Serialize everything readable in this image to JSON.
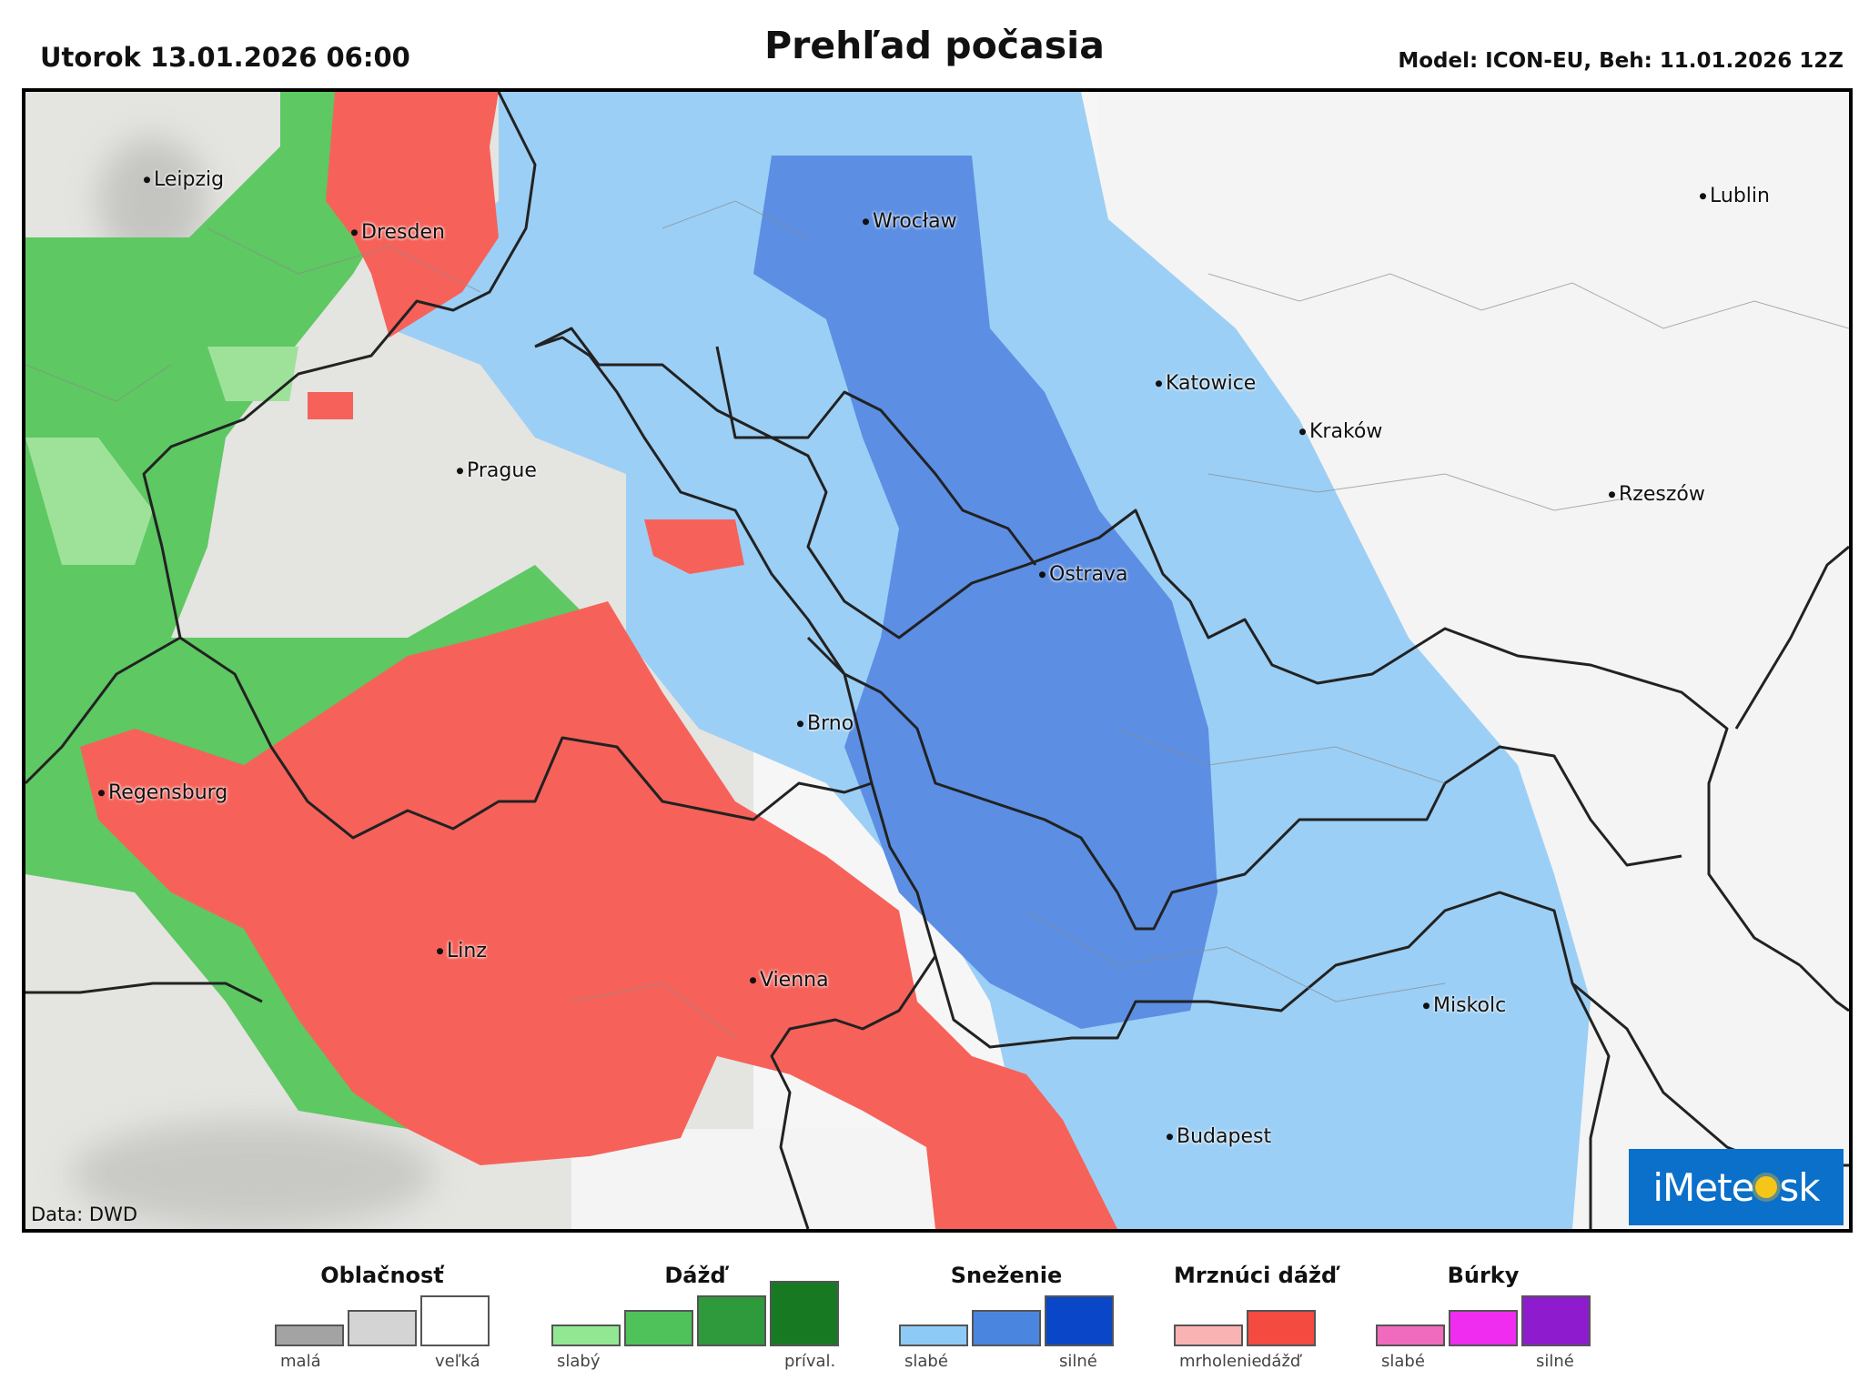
{
  "header": {
    "date": "Utorok 13.01.2026 06:00",
    "title": "Prehľad počasia",
    "model": "Model: ICON-EU, Beh: 11.01.2026 12Z"
  },
  "map": {
    "credit": "Data: DWD",
    "logo": {
      "left": "iMete",
      "right": "sk"
    },
    "colors": {
      "cloud_bg": "#e6e6e3",
      "rain": "#5ec862",
      "rain_light": "#9ee29a",
      "snow_light": "#9ccff5",
      "snow": "#5c8fe3",
      "freezing": "#f6625a",
      "border": "#222222"
    },
    "cities": [
      {
        "name": "Leipzig"
      },
      {
        "name": "Dresden"
      },
      {
        "name": "Wrocław"
      },
      {
        "name": "Lublin"
      },
      {
        "name": "Katowice"
      },
      {
        "name": "Prague"
      },
      {
        "name": "Kraków"
      },
      {
        "name": "Rzeszów"
      },
      {
        "name": "Ostrava"
      },
      {
        "name": "Brno"
      },
      {
        "name": "Regensburg"
      },
      {
        "name": "Linz"
      },
      {
        "name": "Vienna"
      },
      {
        "name": "Miskolc"
      },
      {
        "name": "Budapest"
      }
    ]
  },
  "legend": [
    {
      "title": "Oblačnosť",
      "colors": [
        "#a3a3a3",
        "#d4d4d4",
        "#ffffff"
      ],
      "low": "malá",
      "high": "veľká"
    },
    {
      "title": "Dážď",
      "colors": [
        "#92e892",
        "#4fc25a",
        "#2e9a3c",
        "#177a23"
      ],
      "low": "slabý",
      "high": "príval."
    },
    {
      "title": "Sneženie",
      "colors": [
        "#8ecaf6",
        "#4a86e0",
        "#0a46c8"
      ],
      "low": "slabé",
      "high": "silné"
    },
    {
      "title": "Mrznúci dážď",
      "colors": [
        "#f9b3b3",
        "#f54a40"
      ],
      "low": "mrholenie",
      "high": "dážď"
    },
    {
      "title": "Búrky",
      "colors": [
        "#f06bbd",
        "#f02cf0",
        "#8f1bcf"
      ],
      "low": "slabé",
      "high": "silné"
    }
  ]
}
